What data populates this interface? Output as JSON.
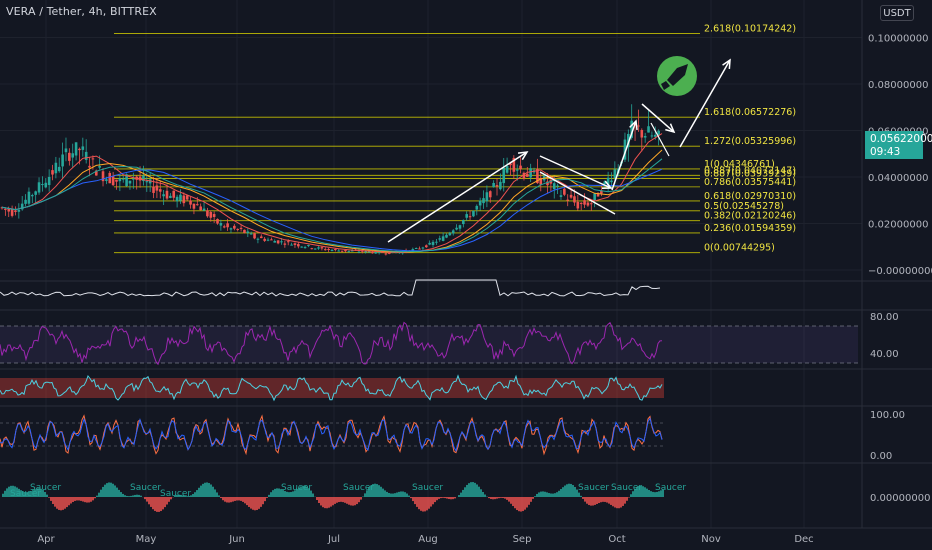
{
  "header": {
    "title": "VERA / Tether, 4h, BITTREX",
    "currency": "USDT"
  },
  "price_tag": {
    "price": "0.05622000",
    "countdown": "09:43",
    "color": "#26a69a"
  },
  "colors": {
    "background": "#131722",
    "fib_line": "#d4d000",
    "fib_text": "#f0e442",
    "candle_up": "#26a69a",
    "candle_down": "#ef5350",
    "drawing": "#ffffff",
    "rocket": "#4caf50",
    "rsi": "#9c27b0"
  },
  "icons": {
    "rocket": "rocket-icon"
  },
  "chart_data": {
    "type": "line",
    "symbol": "VERA / Tether",
    "interval": "4h",
    "exchange": "BITTREX",
    "x_tick_labels": [
      "Apr",
      "May",
      "Jun",
      "Jul",
      "Aug",
      "Sep",
      "Oct",
      "Nov",
      "Dec"
    ],
    "y_tick_labels": [
      "0.10000000",
      "0.08000000",
      "0.06000000",
      "0.04000000",
      "0.02000000",
      "−0.00000000"
    ],
    "ylim": [
      0,
      0.105
    ],
    "fib_levels": [
      {
        "label": "0(0.00744295)",
        "value": 0.00744295
      },
      {
        "label": "0.236(0.01594359)",
        "value": 0.01594359
      },
      {
        "label": "0.382(0.02120246)",
        "value": 0.02120246
      },
      {
        "label": "0.5(0.02545278)",
        "value": 0.02545278
      },
      {
        "label": "0.618(0.02970310)",
        "value": 0.0297031
      },
      {
        "label": "0.786(0.03575441)",
        "value": 0.03575441
      },
      {
        "label": "0.887(0.03939239)",
        "value": 0.03939239
      },
      {
        "label": "0.887(0.04072147)",
        "value": 0.04072147
      },
      {
        "label": "1(0.04346761)",
        "value": 0.04346761
      },
      {
        "label": "1.272(0.05325996)",
        "value": 0.05325996
      },
      {
        "label": "1.618(0.06572276)",
        "value": 0.06572276
      },
      {
        "label": "2.618(0.10174242)",
        "value": 0.10174242
      }
    ],
    "series": [
      {
        "values": [
          0.027,
          0.025,
          0.03,
          0.036,
          0.042,
          0.05,
          0.052,
          0.045,
          0.04,
          0.038,
          0.04,
          0.037,
          0.034,
          0.031,
          0.03,
          0.027,
          0.021,
          0.018,
          0.017,
          0.014,
          0.013,
          0.012,
          0.011,
          0.01,
          0.009,
          0.0085,
          0.0082,
          0.008,
          0.0076,
          0.0075,
          0.0078,
          0.009,
          0.011,
          0.014,
          0.019,
          0.024,
          0.03,
          0.037,
          0.047,
          0.042,
          0.04,
          0.036,
          0.032,
          0.028,
          0.029,
          0.037,
          0.045,
          0.061,
          0.059,
          0.056
        ]
      }
    ],
    "lower_panels": {
      "rsi_levels": [
        "80.00",
        "40.00"
      ],
      "stoch_levels": [
        "100.00",
        "0.00"
      ],
      "ao_level": "0.00000000",
      "signal_label": "Saucer"
    }
  }
}
